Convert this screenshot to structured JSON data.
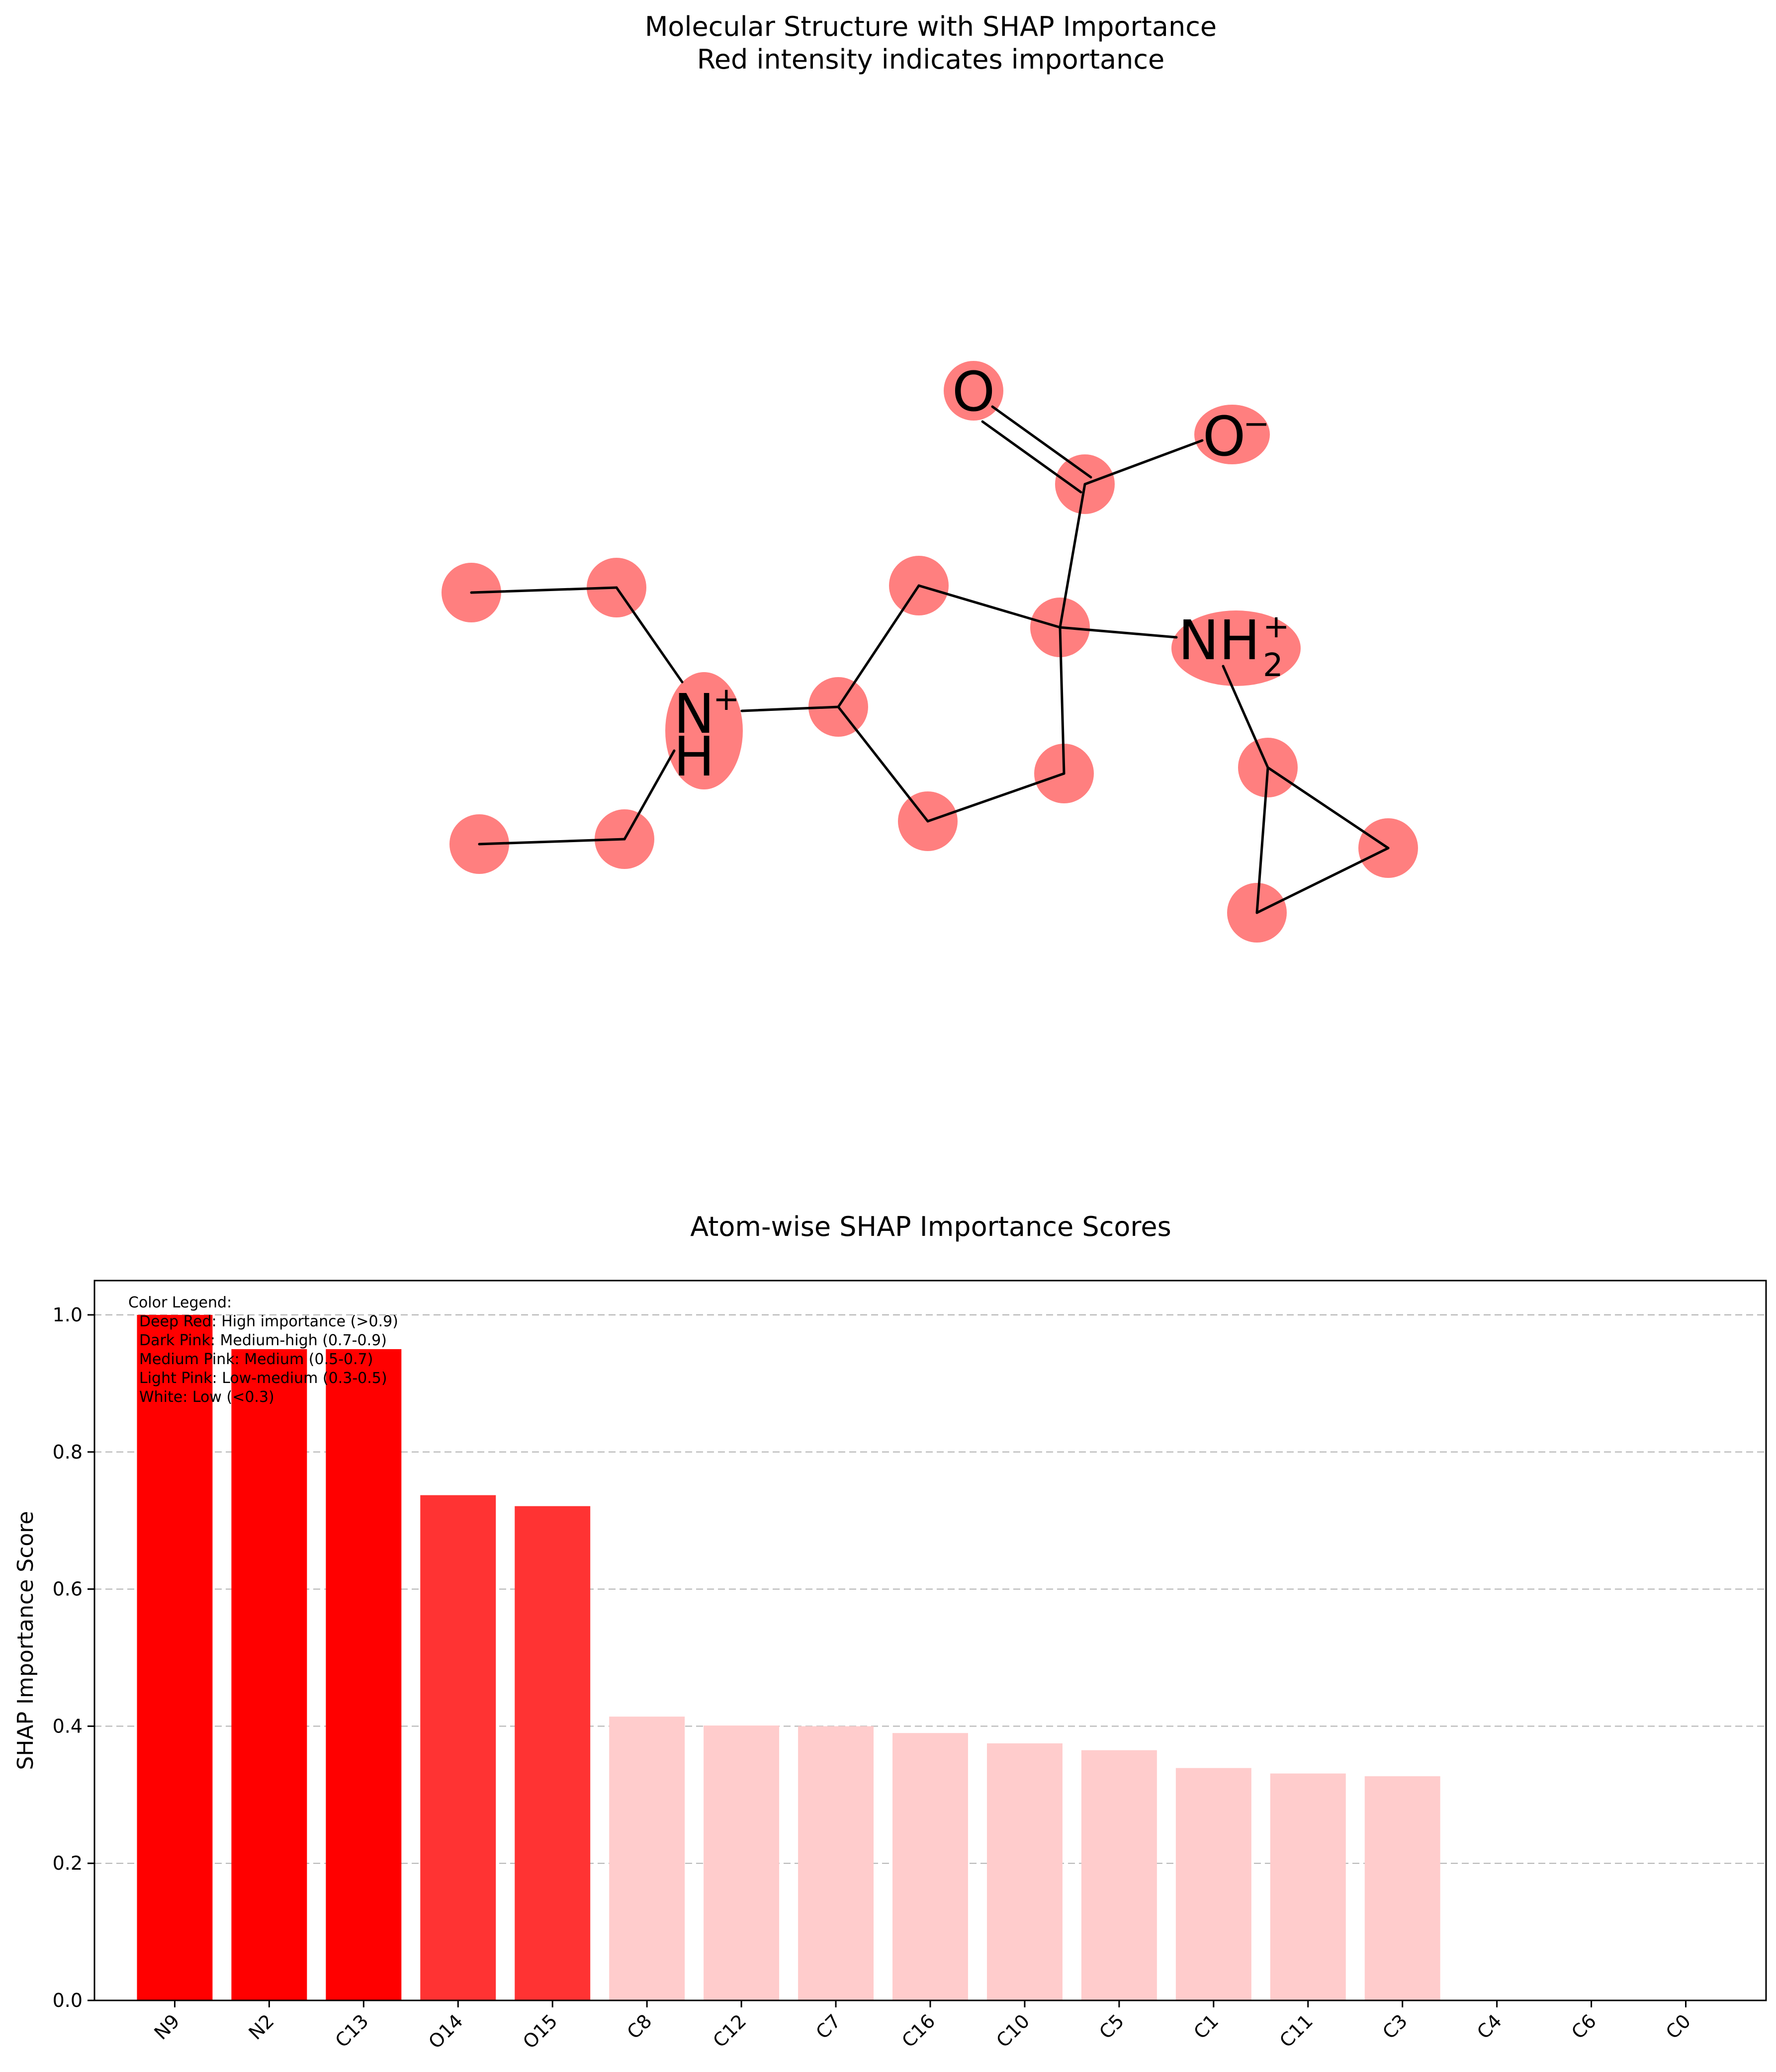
{
  "molecule_panel": {
    "title_line1": "Molecular Structure with SHAP Importance",
    "title_line2": "Red intensity indicates importance",
    "highlight_color": "#ff7f7f",
    "labels": {
      "o_double": "O",
      "o_minus": "O",
      "o_minus_charge": "−",
      "nh2": "NH",
      "nh2_sub": "2",
      "nh2_charge": "+",
      "n_plus": "N",
      "n_plus_charge": "+",
      "n_plus_h": "H"
    }
  },
  "chart_data": {
    "type": "bar",
    "title": "Atom-wise SHAP Importance Scores",
    "xlabel": "",
    "ylabel": "SHAP Importance Score",
    "ylim": [
      0,
      1.05
    ],
    "yticks": [
      0.0,
      0.2,
      0.4,
      0.6,
      0.8,
      1.0
    ],
    "ytick_labels": [
      "0.0",
      "0.2",
      "0.4",
      "0.6",
      "0.8",
      "1.0"
    ],
    "grid": "y-dashed",
    "categories": [
      "N9",
      "N2",
      "C13",
      "O14",
      "O15",
      "C8",
      "C12",
      "C7",
      "C16",
      "C10",
      "C5",
      "C1",
      "C11",
      "C3",
      "C4",
      "C6",
      "C0"
    ],
    "values": [
      1.0,
      0.95,
      0.95,
      0.737,
      0.721,
      0.414,
      0.401,
      0.4,
      0.39,
      0.375,
      0.365,
      0.339,
      0.331,
      0.327,
      0.0,
      0.0,
      0.0
    ],
    "bar_colors": [
      "#ff0000",
      "#ff0000",
      "#ff0000",
      "#ff3333",
      "#ff3333",
      "#ffcccc",
      "#ffcccc",
      "#ffcccc",
      "#ffcccc",
      "#ffcccc",
      "#ffcccc",
      "#ffcccc",
      "#ffcccc",
      "#ffcccc",
      "#ffffff",
      "#ffffff",
      "#ffffff"
    ],
    "legend_placement": "top-left",
    "legend": {
      "title": "Color Legend:",
      "items": [
        "Deep Red: High importance (>0.9)",
        "Dark Pink: Medium-high (0.7-0.9)",
        "Medium Pink: Medium (0.5-0.7)",
        "Light Pink: Low-medium (0.3-0.5)",
        "White: Low (<0.3)"
      ],
      "background": "#ffcccc"
    }
  }
}
